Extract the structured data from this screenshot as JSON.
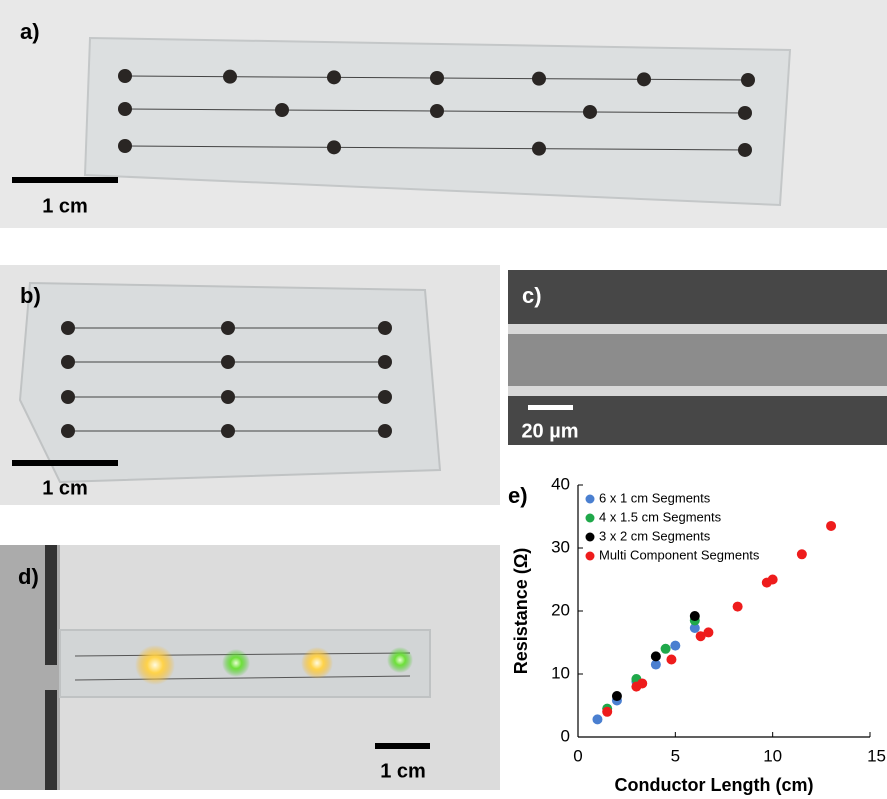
{
  "panels": {
    "a": {
      "label": "a)",
      "scale_bar": "1 cm"
    },
    "b": {
      "label": "b)",
      "scale_bar": "1 cm"
    },
    "c": {
      "label": "c)",
      "scale_bar": "20 µm"
    },
    "d": {
      "label": "d)",
      "scale_bar": "1 cm"
    },
    "e": {
      "label": "e)"
    }
  },
  "chart_data": {
    "type": "scatter",
    "x_label": "Conductor Length (cm)",
    "y_label": "Resistance (Ω)",
    "xlim": [
      0,
      15
    ],
    "xticks": [
      0,
      5,
      10,
      15
    ],
    "ylim": [
      0,
      40
    ],
    "yticks": [
      0,
      10,
      20,
      30,
      40
    ],
    "legend": "upper left",
    "series": [
      {
        "name": "6 x 1 cm Segments",
        "color": "#4a7fd0",
        "x": [
          1,
          2,
          3,
          4,
          5,
          6
        ],
        "values": [
          2.8,
          5.8,
          8.8,
          11.5,
          14.5,
          17.3
        ]
      },
      {
        "name": "4 x 1.5 cm Segments",
        "color": "#1fa84a",
        "x": [
          1.5,
          3,
          4.5,
          6
        ],
        "values": [
          4.5,
          9.2,
          14,
          18.5
        ]
      },
      {
        "name": "3 x 2 cm Segments",
        "color": "#000000",
        "x": [
          2,
          4,
          6
        ],
        "values": [
          6.5,
          12.8,
          19.2
        ]
      },
      {
        "name": "Multi Component Segments",
        "color": "#ee1c1c",
        "x": [
          1.5,
          3,
          3.3,
          4.8,
          6.3,
          6.7,
          8.2,
          9.7,
          10,
          11.5,
          13
        ],
        "values": [
          4,
          8,
          8.5,
          12.3,
          16,
          16.6,
          20.7,
          24.5,
          25,
          29,
          33.5
        ]
      }
    ]
  }
}
